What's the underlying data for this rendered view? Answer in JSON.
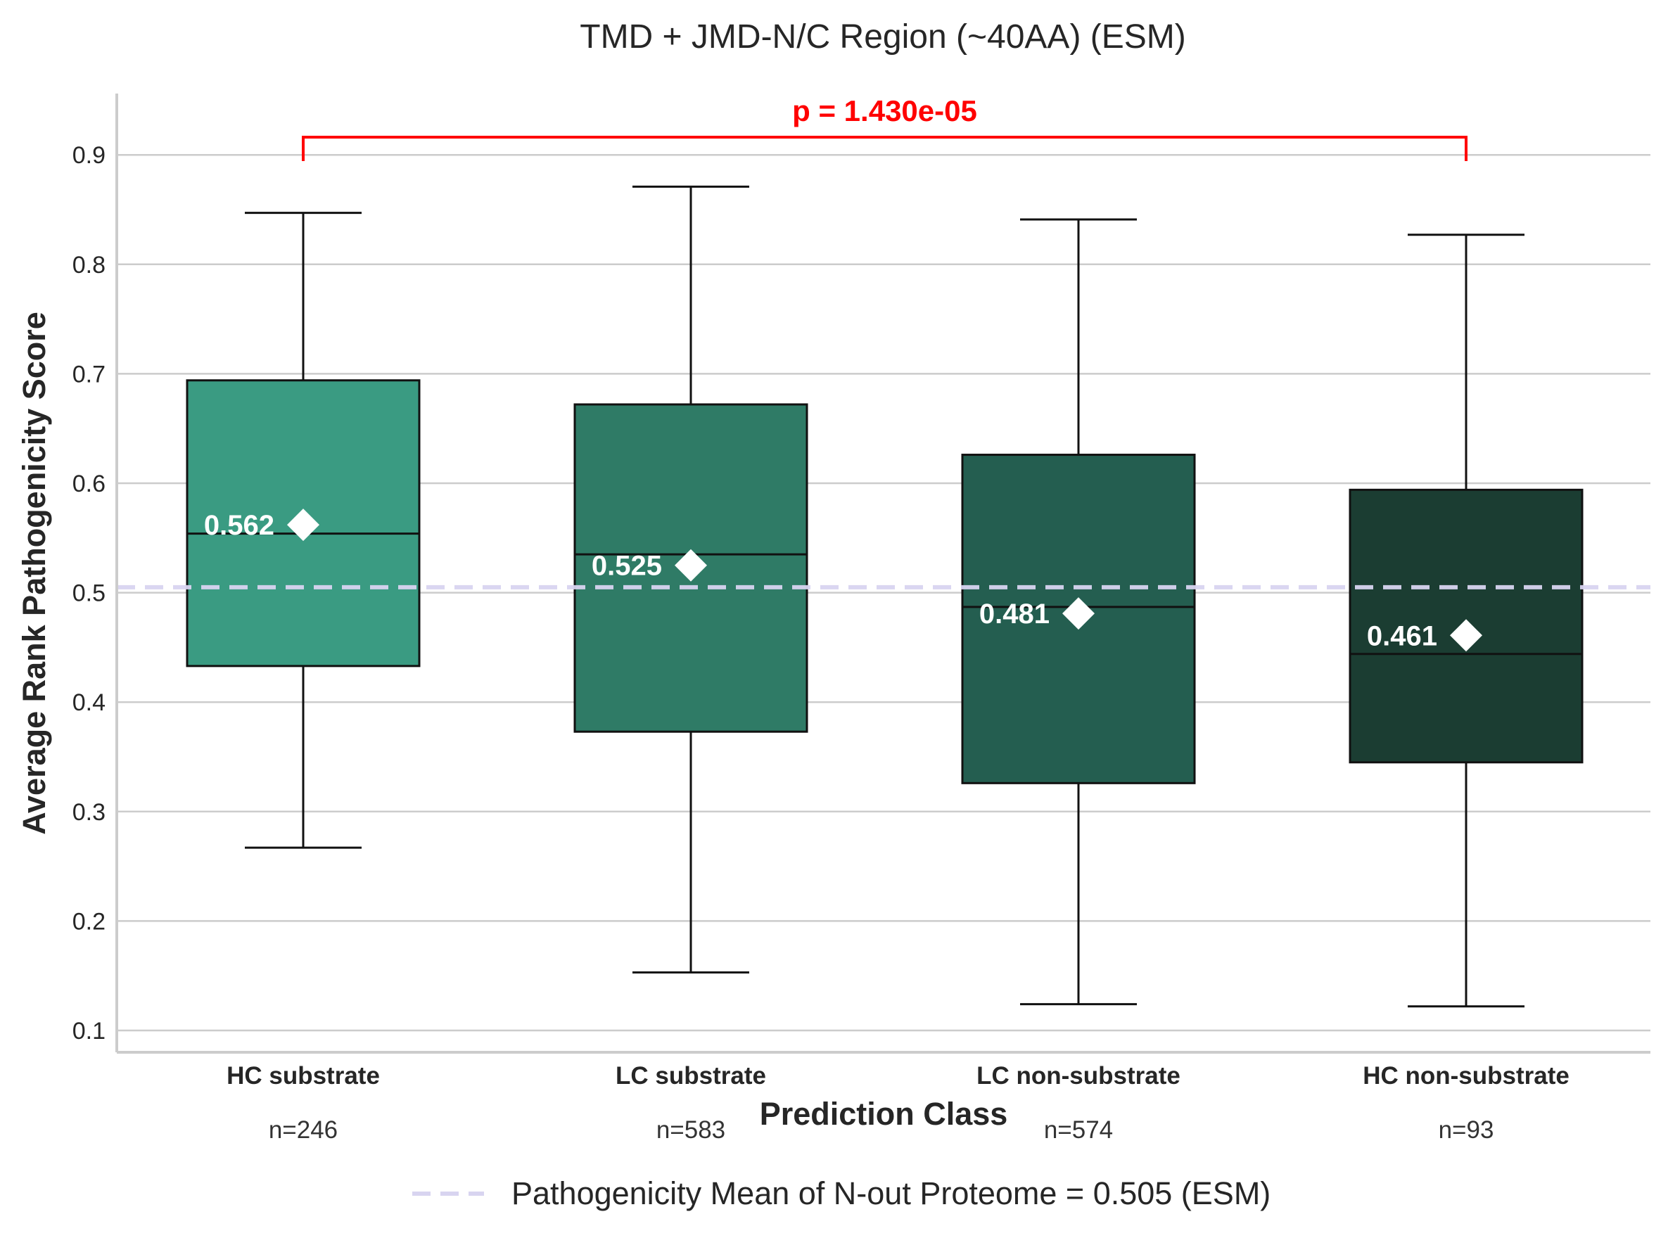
{
  "chart_data": {
    "type": "box",
    "title": "TMD + JMD-N/C Region (~40AA) (ESM)",
    "xlabel": "Prediction Class",
    "ylabel": "Average Rank Pathogenicity Score",
    "ylim": [
      0.08,
      0.955
    ],
    "yticks": [
      "0.1",
      "0.2",
      "0.3",
      "0.4",
      "0.5",
      "0.6",
      "0.7",
      "0.8",
      "0.9"
    ],
    "grid": "horizontal",
    "categories": [
      "HC substrate",
      "LC substrate",
      "LC non-substrate",
      "HC non-substrate"
    ],
    "counts": [
      "n=246",
      "n=583",
      "n=574",
      "n=93"
    ],
    "boxes": [
      {
        "category": "HC substrate",
        "whisker_low": 0.267,
        "q1": 0.433,
        "median": 0.554,
        "q3": 0.694,
        "whisker_high": 0.847,
        "mean": 0.562,
        "mean_label": "0.562",
        "color": "#3a9b82"
      },
      {
        "category": "LC substrate",
        "whisker_low": 0.153,
        "q1": 0.373,
        "median": 0.535,
        "q3": 0.672,
        "whisker_high": 0.871,
        "mean": 0.525,
        "mean_label": "0.525",
        "color": "#2f7b66"
      },
      {
        "category": "LC non-substrate",
        "whisker_low": 0.124,
        "q1": 0.326,
        "median": 0.487,
        "q3": 0.626,
        "whisker_high": 0.841,
        "mean": 0.481,
        "mean_label": "0.481",
        "color": "#245e50"
      },
      {
        "category": "HC non-substrate",
        "whisker_low": 0.122,
        "q1": 0.345,
        "median": 0.444,
        "q3": 0.594,
        "whisker_high": 0.827,
        "mean": 0.461,
        "mean_label": "0.461",
        "color": "#1b3d32"
      }
    ],
    "reference_line": {
      "value": 0.505,
      "color": "#d8d4f0",
      "style": "dashed"
    },
    "legend": {
      "label": "Pathogenicity Mean of N-out Proteome = 0.505 (ESM)",
      "placement": "bottom-center"
    },
    "annotation": {
      "text": "p = 1.430e-05",
      "from": "HC substrate",
      "to": "HC non-substrate",
      "color": "#ff0000"
    }
  }
}
